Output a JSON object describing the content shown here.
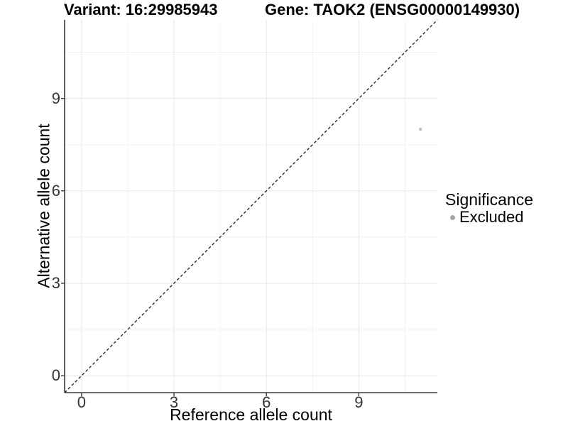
{
  "header": {
    "left_title": "Variant: 16:29985943",
    "right_title": "Gene: TAOK2 (ENSG00000149930)"
  },
  "legend": {
    "title": "Significance",
    "items": [
      {
        "label": "Excluded",
        "color": "#a6a6a6"
      }
    ]
  },
  "chart_data": {
    "type": "scatter",
    "xlabel": "Reference allele count",
    "ylabel": "Alternative allele count",
    "xlim": [
      -0.55,
      11.55
    ],
    "ylim": [
      -0.55,
      11.55
    ],
    "x_ticks": [
      0,
      3,
      6,
      9
    ],
    "y_ticks": [
      0,
      3,
      6,
      9
    ],
    "x_minor_gridlines": [
      1.5,
      4.5,
      7.5,
      10.5
    ],
    "y_minor_gridlines": [
      1.5,
      4.5,
      7.5,
      10.5
    ],
    "grid": "major+minor",
    "legend_position": "right",
    "legend_title": "Significance",
    "series": [
      {
        "name": "Excluded",
        "color": "#c0c0c0",
        "points": [
          {
            "x": 11,
            "y": 8
          }
        ]
      }
    ],
    "reference_line": {
      "type": "identity y=x",
      "style": "dashed",
      "from": [
        -0.55,
        -0.55
      ],
      "to": [
        11.55,
        11.55
      ],
      "color": "#1a1a1a"
    }
  },
  "style": {
    "background": "#ffffff",
    "grid_major_color": "#e7e7e7",
    "grid_minor_color": "#f2f2f2",
    "axis_line_color": "#3a3a3a",
    "tick_label_color": "#333333",
    "title_color": "#000000",
    "point_color": "#c0c0c0",
    "legend_key_color": "#a6a6a6"
  }
}
